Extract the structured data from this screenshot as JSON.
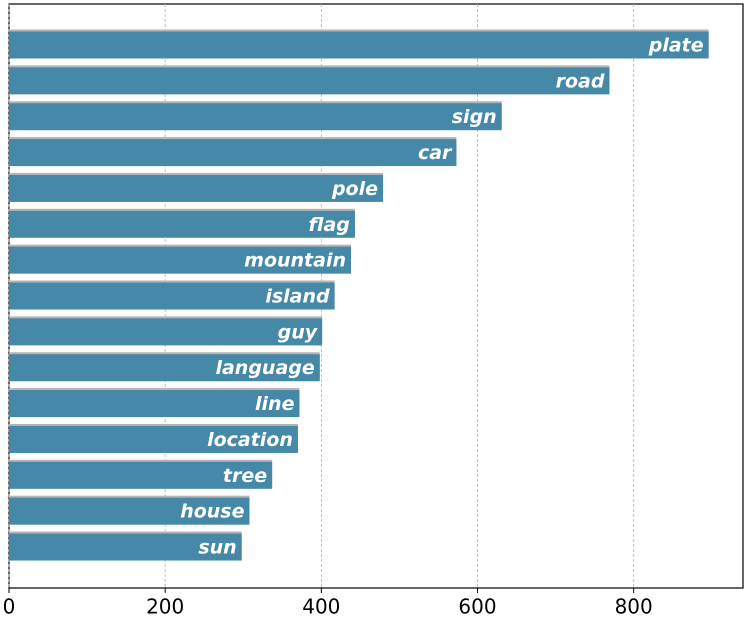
{
  "chart_data": {
    "type": "bar",
    "orientation": "horizontal",
    "categories": [
      "plate",
      "road",
      "sign",
      "car",
      "pole",
      "flag",
      "mountain",
      "island",
      "guy",
      "language",
      "line",
      "location",
      "tree",
      "house",
      "sun"
    ],
    "values": [
      896,
      769,
      631,
      573,
      479,
      443,
      438,
      417,
      401,
      398,
      372,
      370,
      337,
      308,
      298
    ],
    "color": "#4588a8",
    "xlim": [
      0,
      940
    ],
    "xticks": [
      0,
      200,
      400,
      600,
      800
    ],
    "grid": true
  }
}
